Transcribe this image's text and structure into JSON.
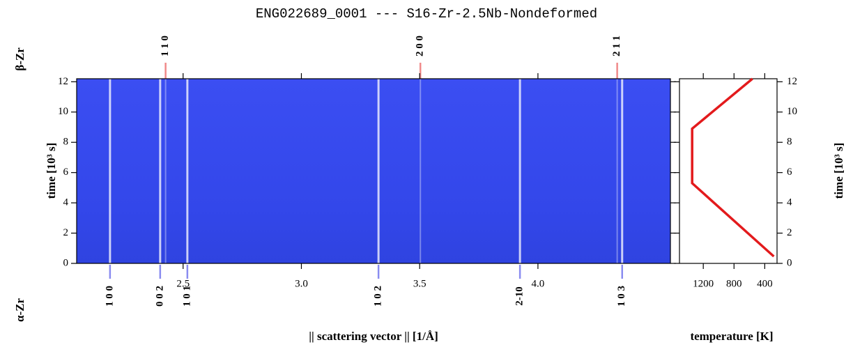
{
  "chart_data": [
    {
      "type": "heatmap",
      "title": "ENG022689_0001 --- S16-Zr-2.5Nb-Nondeformed",
      "xlabel": "|| scattering vector || [1/Å]",
      "ylabel": "time [10³ s]",
      "xlim": [
        2.05,
        4.56
      ],
      "ylim": [
        0,
        12.2
      ],
      "xticks": [
        2.5,
        {
          "value": 3,
          "label": "3.0"
        },
        3.5,
        {
          "value": 4,
          "label": "4.0"
        }
      ],
      "yticks": [
        0,
        2,
        4,
        6,
        8,
        10,
        12
      ],
      "beta_peaks": {
        "name": "β-Zr",
        "color": "#e8332f",
        "peaks": [
          {
            "label": "1 1 0",
            "q": 2.426
          },
          {
            "label": "2 0 0",
            "q": 3.503
          },
          {
            "label": "2 1 1",
            "q": 4.335
          }
        ]
      },
      "alpha_peaks": {
        "name": "α-Zr",
        "color": "#3b3fd8",
        "peaks": [
          {
            "label": "1 0 0",
            "q": 2.191
          },
          {
            "label": "0 0 2",
            "q": 2.403
          },
          {
            "label": "1 0 1",
            "q": 2.518
          },
          {
            "label": "1 0 2",
            "q": 3.326
          },
          {
            "label": "2-10",
            "q": 3.924
          },
          {
            "label": "1 0 3",
            "q": 4.356
          }
        ]
      }
    },
    {
      "type": "line",
      "xlabel": "temperature [K]",
      "ylabel": "time [10³ s]",
      "xlim": [
        1510,
        240
      ],
      "ylim": [
        0,
        12.2
      ],
      "xticks": [
        1200,
        800,
        400
      ],
      "yticks": [
        0,
        2,
        4,
        6,
        8,
        10,
        12
      ],
      "color": "#e31a1c",
      "x": [
        282,
        1345,
        1345,
        560
      ],
      "values": [
        0.46,
        5.3,
        8.9,
        12.2
      ]
    }
  ]
}
